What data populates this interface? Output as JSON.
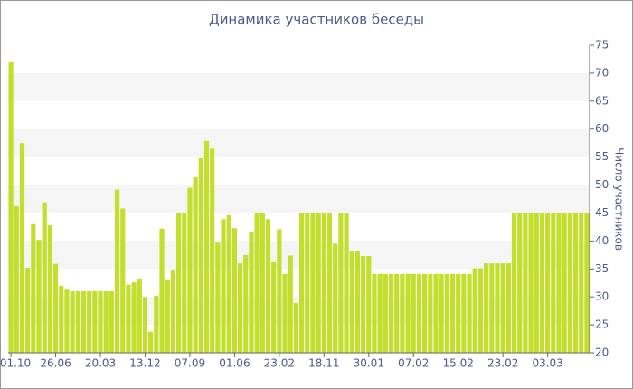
{
  "chart_data": {
    "type": "bar",
    "title": "Динамика участников беседы",
    "y_label": "Число участников",
    "color": "#c2df2e",
    "grid": "bands",
    "ylim": [
      20,
      75
    ],
    "yticks": [
      20,
      25,
      30,
      35,
      40,
      45,
      50,
      55,
      60,
      65,
      70,
      75
    ],
    "categories": [
      "01.10",
      null,
      null,
      null,
      null,
      null,
      null,
      null,
      "26.06",
      null,
      null,
      null,
      null,
      null,
      null,
      null,
      "20.03",
      null,
      null,
      null,
      null,
      null,
      null,
      null,
      "13.12",
      null,
      null,
      null,
      null,
      null,
      null,
      null,
      "07.09",
      null,
      null,
      null,
      null,
      null,
      null,
      null,
      "01.06",
      null,
      null,
      null,
      null,
      null,
      null,
      null,
      "23.02",
      null,
      null,
      null,
      null,
      null,
      null,
      null,
      "18.11",
      null,
      null,
      null,
      null,
      null,
      null,
      null,
      "30.01",
      null,
      null,
      null,
      null,
      null,
      null,
      null,
      "07.02",
      null,
      null,
      null,
      null,
      null,
      null,
      null,
      "15.02",
      null,
      null,
      null,
      null,
      null,
      null,
      null,
      "23.02",
      null,
      null,
      null,
      null,
      null,
      null,
      null,
      "03.03",
      null,
      null,
      null,
      null,
      null,
      null,
      null
    ],
    "values": [
      72,
      46.2,
      57.5,
      35.2,
      43,
      40.2,
      46.9,
      42.8,
      35.9,
      32,
      31.3,
      31,
      31,
      31,
      31,
      31,
      31,
      31,
      31,
      49.2,
      45.8,
      32.2,
      32.6,
      33.3,
      30,
      23.8,
      30.2,
      42.2,
      33,
      34.9,
      45,
      45,
      49.5,
      51.4,
      54.8,
      57.9,
      56.5,
      39.7,
      43.9,
      44.6,
      42.3,
      36,
      37.5,
      41.6,
      45,
      45,
      43.9,
      36.2,
      42.1,
      34.1,
      37.4,
      28.9,
      45,
      45,
      45,
      45,
      45,
      45,
      39.5,
      45,
      45,
      38.1,
      38.1,
      37.3,
      37.3,
      34.1,
      34.1,
      34.1,
      34.1,
      34.1,
      34.1,
      34.1,
      34.1,
      34.1,
      34.1,
      34.1,
      34.1,
      34.1,
      34.1,
      34.1,
      34.1,
      34.1,
      34.1,
      35.1,
      35.1,
      36,
      36,
      36,
      36,
      36,
      45,
      45,
      45,
      45,
      45,
      45,
      45,
      45,
      45,
      45,
      45,
      45,
      45,
      45
    ]
  }
}
